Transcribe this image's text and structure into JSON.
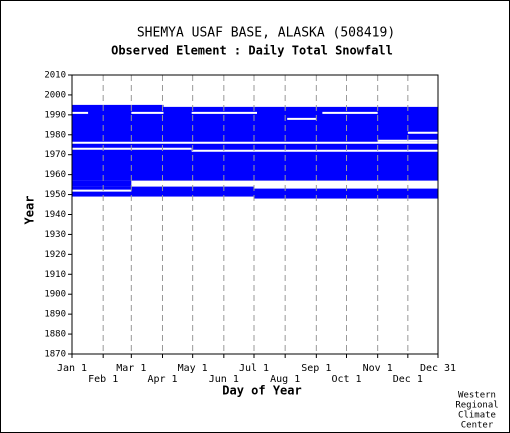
{
  "chart_data": {
    "type": "availability",
    "title": "SHEMYA USAF BASE, ALASKA   (508419)",
    "subtitle": "Observed Element : Daily Total Snowfall",
    "x_label": "Day of Year",
    "y_label": "Year",
    "credit": [
      "Western",
      "Regional",
      "Climate",
      "Center"
    ],
    "color": "#0000ff",
    "grid": true,
    "xlim": [
      1,
      365
    ],
    "ylim": [
      1870,
      2010
    ],
    "xticks": [
      {
        "value": 1,
        "label": "Jan 1"
      },
      {
        "value": 32,
        "label": "Feb 1"
      },
      {
        "value": 60,
        "label": "Mar 1"
      },
      {
        "value": 91,
        "label": "Apr 1"
      },
      {
        "value": 121,
        "label": "May 1"
      },
      {
        "value": 152,
        "label": "Jun 1"
      },
      {
        "value": 182,
        "label": "Jul 1"
      },
      {
        "value": 213,
        "label": "Aug 1"
      },
      {
        "value": 244,
        "label": "Sep 1"
      },
      {
        "value": 274,
        "label": "Oct 1"
      },
      {
        "value": 305,
        "label": "Nov 1"
      },
      {
        "value": 335,
        "label": "Dec 1"
      },
      {
        "value": 365,
        "label": "Dec 31"
      }
    ],
    "yticks": [
      1870,
      1880,
      1890,
      1900,
      1910,
      1920,
      1930,
      1940,
      1950,
      1960,
      1970,
      1980,
      1990,
      2000,
      2010
    ],
    "blocks": [
      {
        "x": [
          1,
          92
        ],
        "y": [
          1957,
          1995
        ]
      },
      {
        "x": [
          92,
          365
        ],
        "y": [
          1957,
          1994
        ]
      },
      {
        "x": [
          1,
          182
        ],
        "y": [
          1949,
          1954
        ]
      },
      {
        "x": [
          182,
          365
        ],
        "y": [
          1948,
          1953
        ]
      },
      {
        "x": [
          1,
          60
        ],
        "y": [
          1954,
          1957
        ]
      }
    ],
    "gaps": [
      {
        "x": [
          1,
          365
        ],
        "y": 1976
      },
      {
        "x": [
          1,
          120
        ],
        "y": 1973
      },
      {
        "x": [
          120,
          365
        ],
        "y": 1972
      },
      {
        "x": [
          1,
          17
        ],
        "y": 1991
      },
      {
        "x": [
          60,
          92
        ],
        "y": 1991
      },
      {
        "x": [
          120,
          185
        ],
        "y": 1991
      },
      {
        "x": [
          250,
          305
        ],
        "y": 1991
      },
      {
        "x": [
          215,
          244
        ],
        "y": 1988
      },
      {
        "x": [
          335,
          365
        ],
        "y": 1981
      },
      {
        "x": [
          305,
          365
        ],
        "y": 1977
      },
      {
        "x": [
          1,
          60
        ],
        "y": 1952
      }
    ]
  }
}
